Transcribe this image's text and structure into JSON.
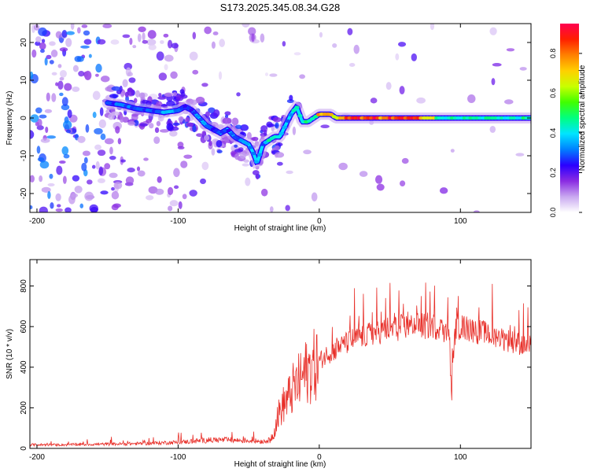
{
  "title": "S173.2025.345.08.34.G28",
  "colors": {
    "snr_line": "#e8302a",
    "axis": "#000000",
    "background": "#ffffff"
  },
  "chart_data": [
    {
      "type": "heatmap",
      "name": "spectrogram",
      "xlabel": "Height of straight line (km)",
      "ylabel": "Frequency (Hz)",
      "xlim": [
        -205,
        150
      ],
      "ylim": [
        -25,
        25
      ],
      "xticks": [
        -200,
        -100,
        0,
        100
      ],
      "yticks": [
        -20,
        -10,
        0,
        10,
        20
      ],
      "xtick_labels": [
        "-200",
        "-100",
        "0",
        "100"
      ],
      "ytick_labels": [
        "-20",
        "-10",
        "0",
        "10",
        "20"
      ],
      "colorbar": {
        "label": "Normalized spectral amplitude",
        "range": [
          0,
          0.95
        ],
        "ticks": [
          0.0,
          0.2,
          0.4,
          0.6,
          0.8
        ],
        "tick_labels": [
          "0.0",
          "0.2",
          "0.4",
          "0.6",
          "0.8"
        ],
        "colormap": [
          "#ffffff",
          "#c9a8f0",
          "#8a2be2",
          "#2a00ff",
          "#0080ff",
          "#00e5ff",
          "#00ff80",
          "#40ff00",
          "#c8ff00",
          "#ffd000",
          "#ff8000",
          "#ff2000",
          "#ff0050"
        ]
      },
      "signal_track": {
        "x": [
          -150,
          -140,
          -130,
          -120,
          -110,
          -100,
          -95,
          -90,
          -85,
          -80,
          -75,
          -70,
          -65,
          -60,
          -55,
          -50,
          -47,
          -44,
          -40,
          -36,
          -32,
          -28,
          -24,
          -20,
          -16,
          -12,
          -8,
          -4,
          0,
          4,
          8,
          12,
          16,
          20,
          30,
          40,
          60,
          80,
          85,
          90,
          95,
          100,
          120,
          150
        ],
        "freq_hz": [
          4,
          3.5,
          2.5,
          2,
          1.5,
          2,
          3,
          2,
          0,
          -2,
          -3,
          -4,
          -3,
          -5,
          -6,
          -7,
          -9,
          -12,
          -7,
          -6,
          -5,
          -5,
          -2,
          1,
          3,
          -1,
          -1,
          0,
          1,
          1,
          1,
          0,
          0,
          0,
          0,
          0,
          0,
          0,
          0,
          0,
          0,
          0,
          0,
          0
        ],
        "amplitude": [
          0.3,
          0.35,
          0.35,
          0.3,
          0.4,
          0.35,
          0.3,
          0.3,
          0.35,
          0.35,
          0.3,
          0.35,
          0.3,
          0.3,
          0.35,
          0.4,
          0.4,
          0.4,
          0.35,
          0.5,
          0.5,
          0.5,
          0.35,
          0.4,
          0.5,
          0.55,
          0.5,
          0.45,
          0.9,
          0.9,
          0.9,
          0.6,
          0.9,
          0.95,
          0.95,
          0.95,
          0.95,
          0.85,
          0.5,
          0.45,
          0.5,
          0.5,
          0.5,
          0.5
        ]
      }
    },
    {
      "type": "line",
      "name": "snr",
      "xlabel": "Height of straight line (km)",
      "ylabel": "SNR (10 * v/v)",
      "xlim": [
        -205,
        150
      ],
      "ylim": [
        0,
        930
      ],
      "xticks": [
        -200,
        -100,
        0,
        100
      ],
      "yticks": [
        0,
        200,
        400,
        600,
        800
      ],
      "xtick_labels": [
        "-200",
        "-100",
        "0",
        "100"
      ],
      "ytick_labels": [
        "0",
        "200",
        "400",
        "600",
        "800"
      ],
      "series": [
        {
          "name": "SNR",
          "color": "#e8302a",
          "x": [
            -205,
            -180,
            -160,
            -140,
            -120,
            -110,
            -100,
            -90,
            -80,
            -70,
            -60,
            -50,
            -40,
            -35,
            -32,
            -30,
            -28,
            -25,
            -22,
            -20,
            -18,
            -15,
            -12,
            -10,
            -5,
            0,
            5,
            10,
            15,
            20,
            25,
            30,
            35,
            40,
            45,
            50,
            55,
            60,
            65,
            70,
            75,
            80,
            85,
            90,
            92,
            93,
            94,
            95,
            97,
            100,
            105,
            110,
            115,
            120,
            125,
            130,
            135,
            140,
            145,
            150
          ],
          "base": [
            18,
            18,
            20,
            22,
            25,
            28,
            30,
            35,
            40,
            42,
            40,
            38,
            35,
            40,
            80,
            150,
            180,
            220,
            250,
            270,
            300,
            320,
            350,
            370,
            400,
            430,
            460,
            480,
            500,
            520,
            540,
            550,
            560,
            570,
            580,
            590,
            590,
            600,
            600,
            610,
            600,
            610,
            590,
            580,
            560,
            350,
            250,
            480,
            600,
            600,
            590,
            580,
            570,
            560,
            550,
            540,
            530,
            520,
            510,
            500
          ]
        }
      ]
    }
  ]
}
